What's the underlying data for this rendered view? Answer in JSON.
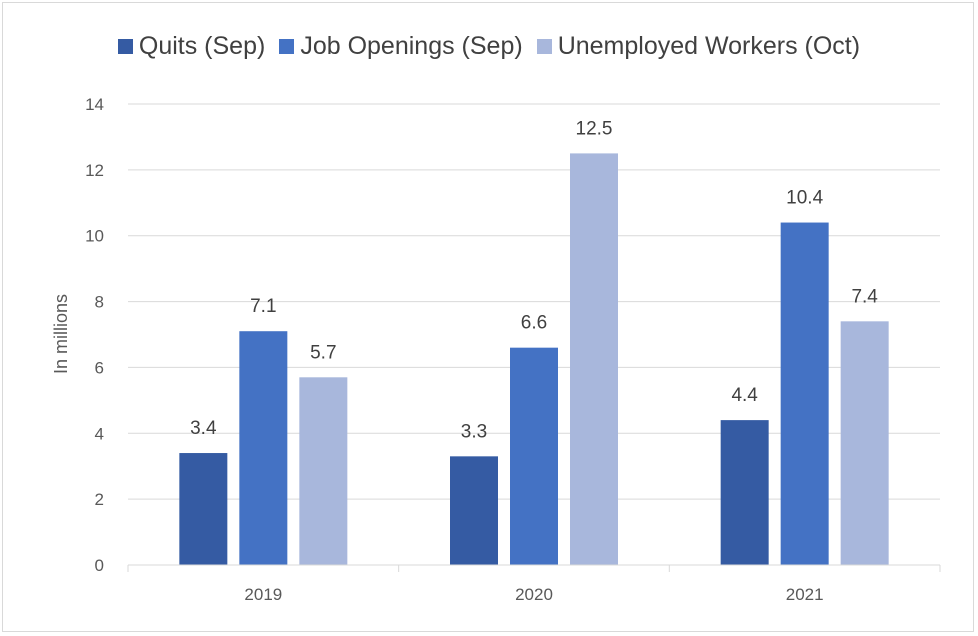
{
  "chart_data": {
    "type": "bar",
    "categories": [
      "2019",
      "2020",
      "2021"
    ],
    "series": [
      {
        "name": "Quits (Sep)",
        "color": "#355ba3",
        "values": [
          3.4,
          3.3,
          4.4
        ]
      },
      {
        "name": "Job Openings (Sep)",
        "color": "#4472c4",
        "values": [
          7.1,
          6.6,
          10.4
        ]
      },
      {
        "name": "Unemployed Workers (Oct)",
        "color": "#a8b7dc",
        "values": [
          5.7,
          12.5,
          7.4
        ]
      }
    ],
    "title": "",
    "xlabel": "",
    "ylabel": "In millions",
    "ylim": [
      0,
      14
    ],
    "yticks": [
      0,
      2,
      4,
      6,
      8,
      10,
      12,
      14
    ],
    "grid": true,
    "legend_position": "top"
  }
}
